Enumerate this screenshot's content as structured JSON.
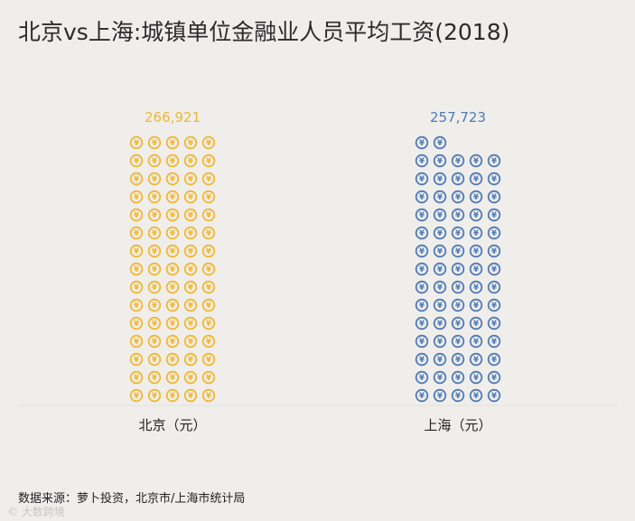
{
  "title": "北京vs上海:城镇单位金融业人员平均工资(2018)",
  "source": "数据来源：萝卜投资，北京市/上海市统计局",
  "watermark": "© 大数跨境",
  "coin_symbol": "¥",
  "chart_data": {
    "type": "pictograph",
    "title": "北京vs上海:城镇单位金融业人员平均工资(2018)",
    "unit": "元",
    "categories": [
      "北京（元）",
      "上海（元）"
    ],
    "values": [
      266921,
      257723
    ],
    "value_labels": [
      "266,921",
      "257,723"
    ],
    "icon_counts": [
      75,
      72
    ],
    "colors": [
      "#f0b733",
      "#4f7ab5"
    ]
  }
}
